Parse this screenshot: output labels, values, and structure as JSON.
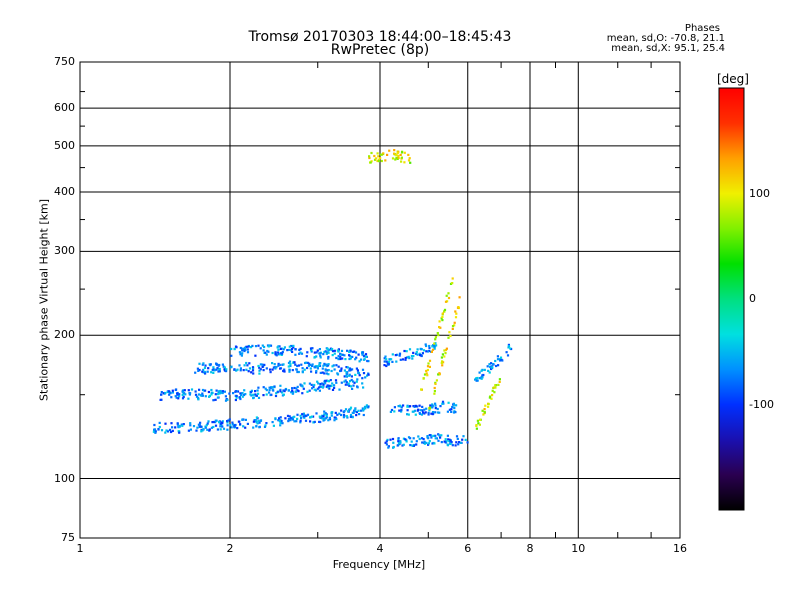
{
  "header": {
    "title": "Tromsø 20170303 18:44:00–18:45:43",
    "subtitle": "RwPretec (8p)"
  },
  "phases": {
    "heading": "Phases",
    "line_o": "mean, sd,O: -70.8, 21.1",
    "line_x": "mean, sd,X:  95.1, 25.4"
  },
  "colorbar": {
    "unit": "[deg]",
    "ticks": [
      "100",
      "0",
      "-100"
    ],
    "tick_values": [
      100,
      0,
      -100
    ],
    "range": [
      -200,
      200
    ],
    "colors": [
      "#000000",
      "#2a0050",
      "#1a10b0",
      "#0030ff",
      "#0090ff",
      "#00e0e0",
      "#00e080",
      "#00e000",
      "#80f000",
      "#f0f000",
      "#ffa000",
      "#ff3000",
      "#ff0000"
    ]
  },
  "chart_data": {
    "type": "scatter",
    "title": "Tromsø 20170303 18:44:00–18:45:43",
    "subtitle": "RwPretec (8p)",
    "xlabel": "Frequency [MHz]",
    "ylabel": "Stationary phase Virtual Height [km]",
    "x_scale": "log",
    "y_scale": "log",
    "xlim": [
      1,
      16
    ],
    "ylim": [
      75,
      750
    ],
    "xticks": [
      1,
      2,
      4,
      6,
      8,
      10,
      16
    ],
    "yticks": [
      75,
      100,
      200,
      300,
      400,
      500,
      600,
      750
    ],
    "grid": true,
    "series": [
      {
        "name": "O",
        "phase_mean": -70.8,
        "phase_sd": 21.1,
        "traces": [
          {
            "f": [
              1.4,
              1.6,
              1.8,
              2.0,
              2.2,
              2.5,
              2.8,
              3.1,
              3.4,
              3.8
            ],
            "h": [
              128,
              128,
              129,
              130,
              131,
              132,
              134,
              135,
              137,
              140
            ]
          },
          {
            "f": [
              1.45,
              1.6,
              1.8,
              2.0,
              2.2,
              2.5,
              2.8,
              3.1,
              3.4,
              3.7
            ],
            "h": [
              150,
              151,
              150,
              149,
              151,
              153,
              155,
              157,
              158,
              158
            ]
          },
          {
            "f": [
              1.7,
              2.0,
              2.3,
              2.6,
              3.0,
              3.4,
              3.8
            ],
            "h": [
              170,
              172,
              170,
              172,
              171,
              168,
              165
            ]
          },
          {
            "f": [
              2.0,
              2.3,
              2.6,
              3.0,
              3.4,
              3.8
            ],
            "h": [
              185,
              186,
              186,
              184,
              182,
              180
            ]
          },
          {
            "f": [
              4.2,
              4.5,
              4.8,
              5.1,
              5.4,
              5.7
            ],
            "h": [
              140,
              139,
              139,
              140,
              142,
              140
            ]
          },
          {
            "f": [
              4.1,
              4.4,
              4.8,
              5.2,
              5.6,
              6.0
            ],
            "h": [
              118,
              119,
              120,
              121,
              120,
              121
            ]
          },
          {
            "f": [
              6.2,
              6.6,
              7.0,
              7.4
            ],
            "h": [
              160,
              170,
              180,
              190
            ]
          },
          {
            "f": [
              4.0,
              4.4,
              4.8,
              5.2
            ],
            "h": [
              175,
              180,
              185,
              190
            ]
          }
        ]
      },
      {
        "name": "X",
        "phase_mean": 95.1,
        "phase_sd": 25.4,
        "traces": [
          {
            "f": [
              4.8,
              5.0,
              5.2,
              5.4,
              5.6
            ],
            "h": [
              150,
              170,
              200,
              230,
              260
            ]
          },
          {
            "f": [
              5.0,
              5.2,
              5.4,
              5.6,
              5.8
            ],
            "h": [
              140,
              160,
              185,
              210,
              240
            ]
          },
          {
            "f": [
              6.2,
              6.5,
              6.8,
              7.0
            ],
            "h": [
              125,
              140,
              155,
              165
            ]
          },
          {
            "f": [
              3.8,
              4.2,
              4.6
            ],
            "h": [
              472,
              480,
              470
            ]
          }
        ]
      }
    ]
  }
}
